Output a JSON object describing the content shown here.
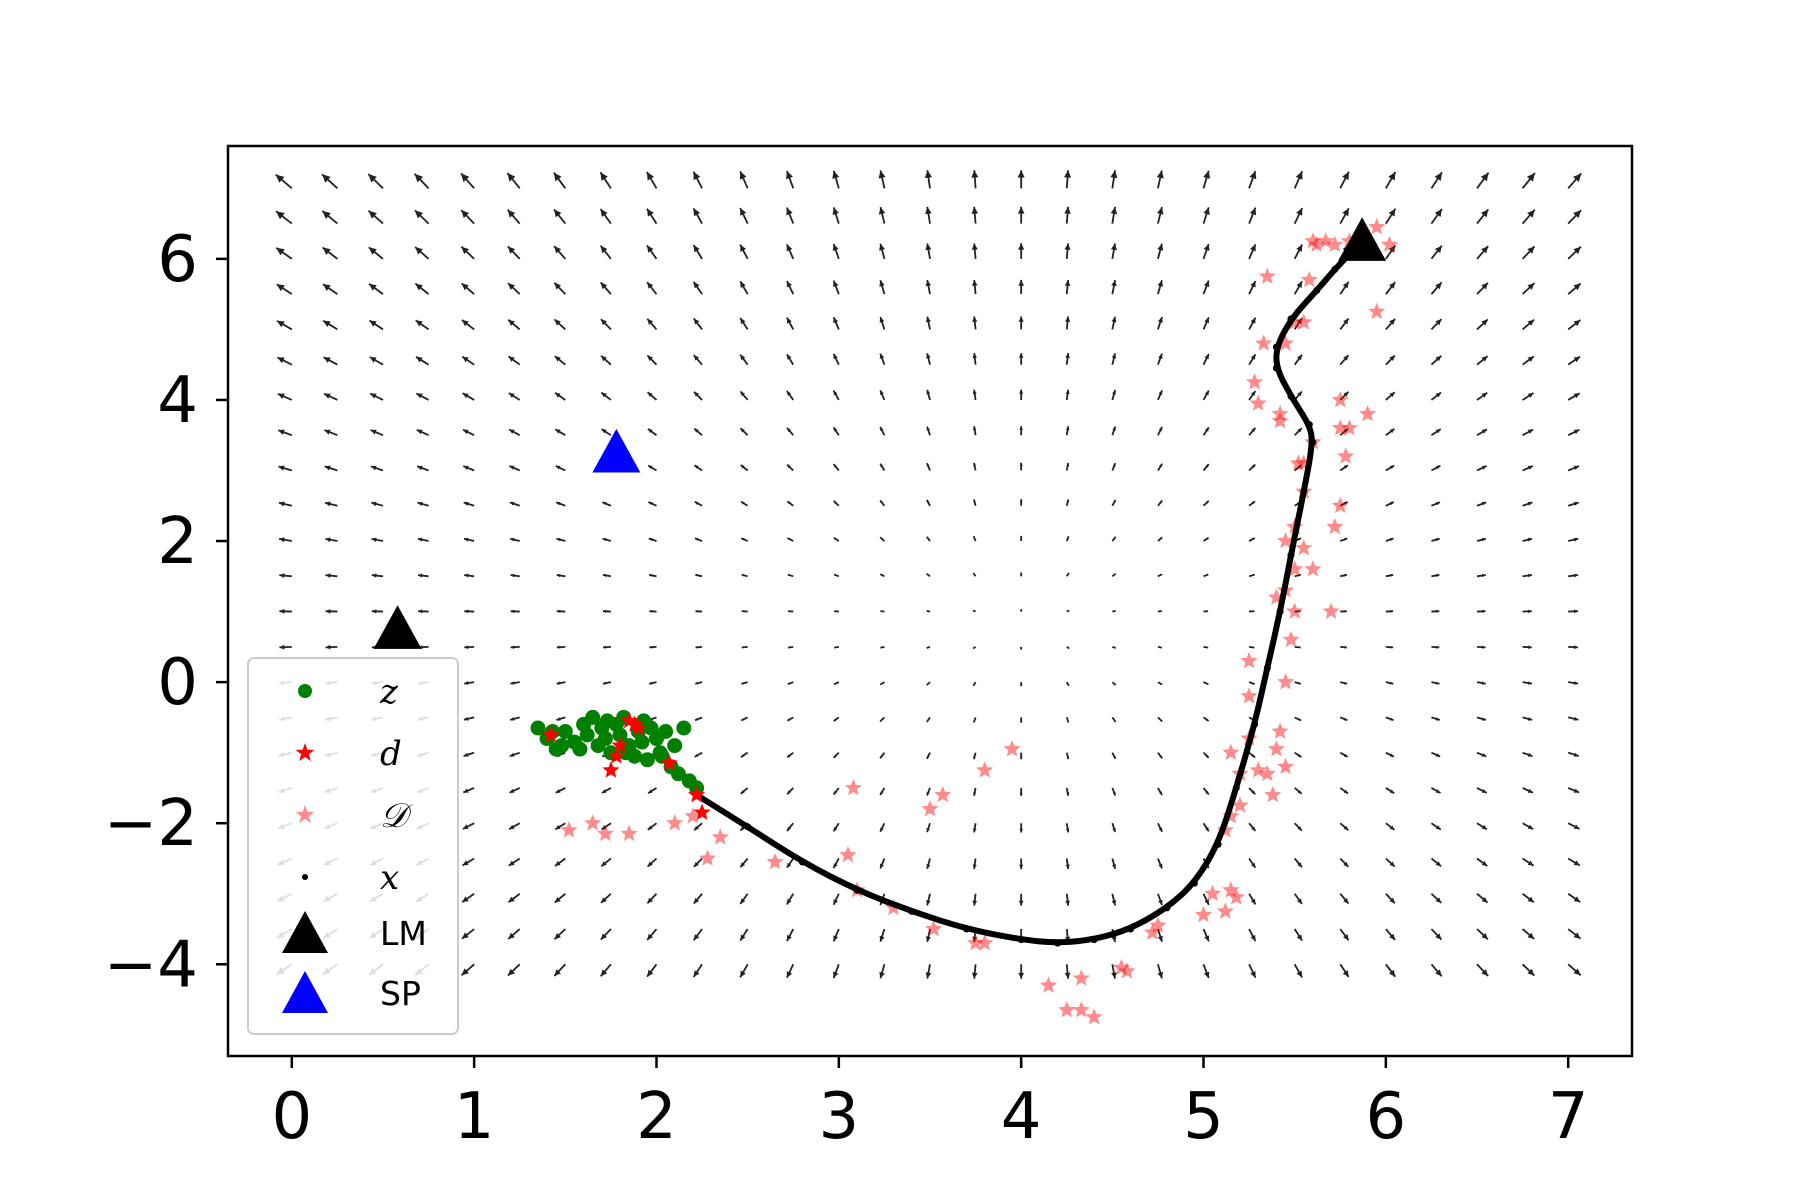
{
  "chart_data": {
    "type": "scatter",
    "title": "",
    "xlabel": "",
    "ylabel": "",
    "xlim": [
      -0.35,
      7.35
    ],
    "ylim": [
      -5.3,
      7.6
    ],
    "x_ticks": [
      0,
      1,
      2,
      3,
      4,
      5,
      6,
      7
    ],
    "y_ticks": [
      -4,
      -2,
      0,
      2,
      4,
      6
    ],
    "x_tick_labels": [
      "0",
      "1",
      "2",
      "3",
      "4",
      "5",
      "6",
      "7"
    ],
    "y_tick_labels": [
      "−4",
      "−2",
      "0",
      "2",
      "4",
      "6"
    ],
    "grid": false,
    "legend_position": "lower-left",
    "colors": {
      "z": "#008000",
      "d": "#ff0000",
      "D": "#ff0000",
      "x": "#000000",
      "LM": "#000000",
      "SP": "#0000ff",
      "quiver": "#222222"
    },
    "quiver_field": {
      "x_range": [
        0,
        7
      ],
      "y_range": [
        -4,
        7
      ],
      "nx": 29,
      "ny": 23,
      "description": "vector field of small arrows over the grid"
    },
    "series": [
      {
        "name": "z",
        "marker": "circle",
        "color": "#008000",
        "points": [
          [
            1.35,
            -0.65
          ],
          [
            1.4,
            -0.8
          ],
          [
            1.45,
            -0.95
          ],
          [
            1.5,
            -0.7
          ],
          [
            1.55,
            -0.85
          ],
          [
            1.6,
            -0.6
          ],
          [
            1.62,
            -0.75
          ],
          [
            1.65,
            -0.5
          ],
          [
            1.68,
            -0.9
          ],
          [
            1.7,
            -0.65
          ],
          [
            1.72,
            -0.8
          ],
          [
            1.75,
            -1.0
          ],
          [
            1.78,
            -0.6
          ],
          [
            1.8,
            -0.75
          ],
          [
            1.82,
            -0.5
          ],
          [
            1.85,
            -0.9
          ],
          [
            1.88,
            -1.05
          ],
          [
            1.9,
            -0.7
          ],
          [
            1.92,
            -0.85
          ],
          [
            1.95,
            -1.1
          ],
          [
            1.97,
            -0.65
          ],
          [
            2.0,
            -0.8
          ],
          [
            2.02,
            -1.0
          ],
          [
            2.05,
            -0.7
          ],
          [
            2.08,
            -1.2
          ],
          [
            2.1,
            -0.9
          ],
          [
            2.12,
            -1.3
          ],
          [
            2.15,
            -0.65
          ],
          [
            2.18,
            -1.4
          ],
          [
            2.22,
            -1.5
          ],
          [
            1.48,
            -0.9
          ],
          [
            1.58,
            -0.95
          ],
          [
            1.73,
            -0.55
          ],
          [
            1.83,
            -1.0
          ],
          [
            1.93,
            -0.55
          ],
          [
            2.03,
            -1.05
          ],
          [
            1.43,
            -0.7
          ]
        ]
      },
      {
        "name": "d",
        "marker": "star",
        "color": "#ff0000",
        "points": [
          [
            1.42,
            -0.75
          ],
          [
            1.75,
            -1.25
          ],
          [
            1.78,
            -1.05
          ],
          [
            1.8,
            -0.9
          ],
          [
            1.85,
            -0.55
          ],
          [
            1.88,
            -0.6
          ],
          [
            1.9,
            -0.65
          ],
          [
            2.07,
            -1.15
          ],
          [
            2.22,
            -1.6
          ],
          [
            2.25,
            -1.85
          ]
        ]
      },
      {
        "name": "𝒟",
        "marker": "star",
        "color": "#ff0000",
        "alpha": 0.45,
        "points": [
          [
            1.52,
            -2.1
          ],
          [
            1.65,
            -2.0
          ],
          [
            1.72,
            -2.15
          ],
          [
            1.85,
            -2.15
          ],
          [
            2.1,
            -2.0
          ],
          [
            2.2,
            -1.9
          ],
          [
            2.28,
            -2.5
          ],
          [
            2.35,
            -2.2
          ],
          [
            2.65,
            -2.55
          ],
          [
            3.05,
            -2.45
          ],
          [
            3.08,
            -1.5
          ],
          [
            3.1,
            -2.95
          ],
          [
            3.3,
            -3.2
          ],
          [
            3.52,
            -3.5
          ],
          [
            3.5,
            -1.8
          ],
          [
            3.57,
            -1.6
          ],
          [
            3.75,
            -3.7
          ],
          [
            3.8,
            -3.7
          ],
          [
            3.8,
            -1.25
          ],
          [
            3.95,
            -0.95
          ],
          [
            4.15,
            -4.3
          ],
          [
            4.25,
            -4.65
          ],
          [
            4.33,
            -4.65
          ],
          [
            4.33,
            -4.2
          ],
          [
            4.4,
            -4.75
          ],
          [
            4.55,
            -4.05
          ],
          [
            4.58,
            -4.1
          ],
          [
            4.72,
            -3.55
          ],
          [
            4.75,
            -3.45
          ],
          [
            5.0,
            -3.3
          ],
          [
            5.05,
            -3.0
          ],
          [
            5.12,
            -3.25
          ],
          [
            5.15,
            -2.95
          ],
          [
            5.18,
            -3.05
          ],
          [
            5.12,
            -2.1
          ],
          [
            5.15,
            -1.9
          ],
          [
            5.2,
            -1.75
          ],
          [
            5.15,
            -1.0
          ],
          [
            5.2,
            -1.3
          ],
          [
            5.25,
            -0.8
          ],
          [
            5.25,
            -0.2
          ],
          [
            5.25,
            0.3
          ],
          [
            5.3,
            -1.25
          ],
          [
            5.35,
            -1.3
          ],
          [
            5.38,
            -1.6
          ],
          [
            5.4,
            -0.95
          ],
          [
            5.45,
            -1.2
          ],
          [
            5.42,
            -0.7
          ],
          [
            5.45,
            0.0
          ],
          [
            5.48,
            0.6
          ],
          [
            5.5,
            1.0
          ],
          [
            5.45,
            1.3
          ],
          [
            5.5,
            1.6
          ],
          [
            5.55,
            1.9
          ],
          [
            5.5,
            2.2
          ],
          [
            5.55,
            2.7
          ],
          [
            5.55,
            3.1
          ],
          [
            5.52,
            3.1
          ],
          [
            5.6,
            3.4
          ],
          [
            5.4,
            1.2
          ],
          [
            5.45,
            2.0
          ],
          [
            5.6,
            1.6
          ],
          [
            5.7,
            1.0
          ],
          [
            5.72,
            2.2
          ],
          [
            5.75,
            2.5
          ],
          [
            5.78,
            3.2
          ],
          [
            5.8,
            3.6
          ],
          [
            5.75,
            4.0
          ],
          [
            5.75,
            3.6
          ],
          [
            5.9,
            3.8
          ],
          [
            5.42,
            3.7
          ],
          [
            5.42,
            3.8
          ],
          [
            5.3,
            3.95
          ],
          [
            5.28,
            4.25
          ],
          [
            5.33,
            4.8
          ],
          [
            5.45,
            4.8
          ],
          [
            5.5,
            5.1
          ],
          [
            5.55,
            5.1
          ],
          [
            5.35,
            5.75
          ],
          [
            5.58,
            5.7
          ],
          [
            5.62,
            6.2
          ],
          [
            5.67,
            6.25
          ],
          [
            5.72,
            6.2
          ],
          [
            5.8,
            6.25
          ],
          [
            5.6,
            6.25
          ],
          [
            5.95,
            6.45
          ],
          [
            6.02,
            6.2
          ],
          [
            5.95,
            5.25
          ]
        ]
      },
      {
        "name": "x",
        "marker": "point",
        "color": "#000000",
        "points": [
          [
            2.22,
            -1.6
          ],
          [
            2.5,
            -2.05
          ],
          [
            2.8,
            -2.55
          ],
          [
            3.1,
            -2.95
          ],
          [
            3.4,
            -3.25
          ],
          [
            3.7,
            -3.5
          ],
          [
            4.0,
            -3.65
          ],
          [
            4.2,
            -3.7
          ],
          [
            4.4,
            -3.65
          ],
          [
            4.6,
            -3.5
          ],
          [
            4.8,
            -3.2
          ],
          [
            4.95,
            -2.85
          ],
          [
            5.08,
            -2.3
          ],
          [
            5.18,
            -1.5
          ],
          [
            5.28,
            -0.6
          ],
          [
            5.35,
            0.2
          ],
          [
            5.42,
            1.0
          ],
          [
            5.48,
            1.8
          ],
          [
            5.55,
            2.7
          ],
          [
            5.6,
            3.4
          ],
          [
            5.58,
            3.65
          ],
          [
            5.48,
            4.05
          ],
          [
            5.4,
            4.45
          ],
          [
            5.4,
            4.75
          ],
          [
            5.48,
            5.15
          ],
          [
            5.62,
            5.55
          ],
          [
            5.72,
            5.85
          ],
          [
            5.85,
            6.2
          ]
        ]
      },
      {
        "name": "LM",
        "marker": "triangle",
        "color": "#000000",
        "points": [
          [
            0.58,
            0.75
          ],
          [
            5.87,
            6.25
          ]
        ]
      },
      {
        "name": "SP",
        "marker": "triangle",
        "color": "#0000ff",
        "points": [
          [
            1.78,
            3.25
          ]
        ]
      }
    ]
  }
}
